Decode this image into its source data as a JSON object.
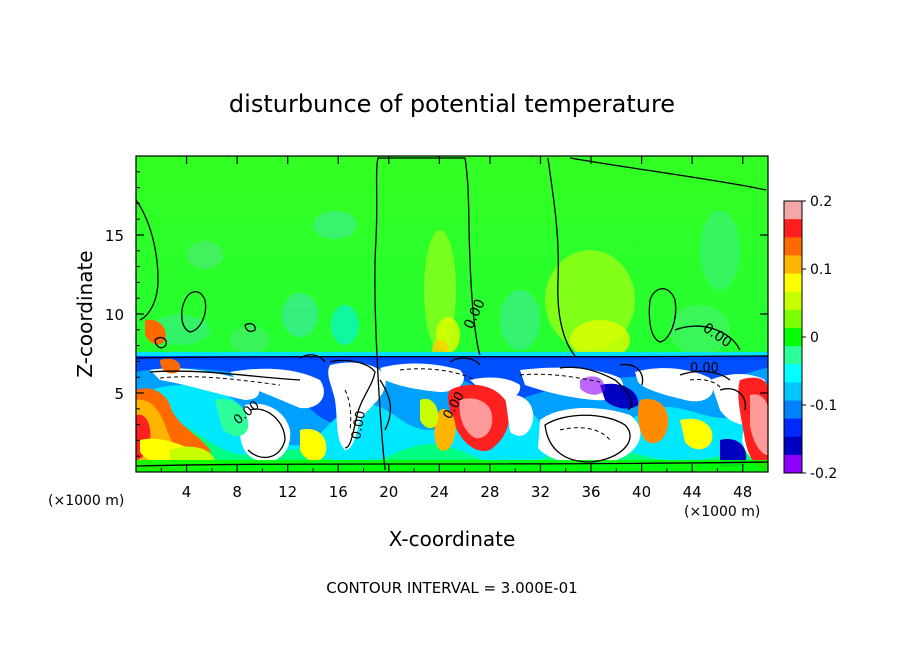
{
  "chart_data": {
    "type": "heatmap",
    "title": "disturbunce of potential temperature",
    "xlabel": "X-coordinate",
    "ylabel": "Z-coordinate",
    "x_unit_label": "(×1000 m)",
    "y_unit_label": "(×1000 m)",
    "xlim": [
      0,
      50
    ],
    "ylim": [
      0,
      20
    ],
    "x_ticks": [
      "4",
      "8",
      "12",
      "16",
      "20",
      "24",
      "28",
      "32",
      "36",
      "40",
      "44",
      "48"
    ],
    "y_ticks": [
      "5",
      "10",
      "15"
    ],
    "colorbar": {
      "min": -0.2,
      "max": 0.2,
      "tick_labels": [
        "0.2",
        "0.1",
        "0",
        "-0.1",
        "-0.2"
      ],
      "colors": [
        "#f4a7a7",
        "#ff1e1e",
        "#ff6a00",
        "#ffb400",
        "#ffff00",
        "#c8ff00",
        "#7dff00",
        "#00ff00",
        "#2dff9a",
        "#00ffff",
        "#00c8ff",
        "#0082ff",
        "#0028ff",
        "#0000c0",
        "#8c00ff"
      ]
    },
    "contour_label": "0.00",
    "footer": "CONTOUR INTERVAL = 3.000E-01"
  }
}
